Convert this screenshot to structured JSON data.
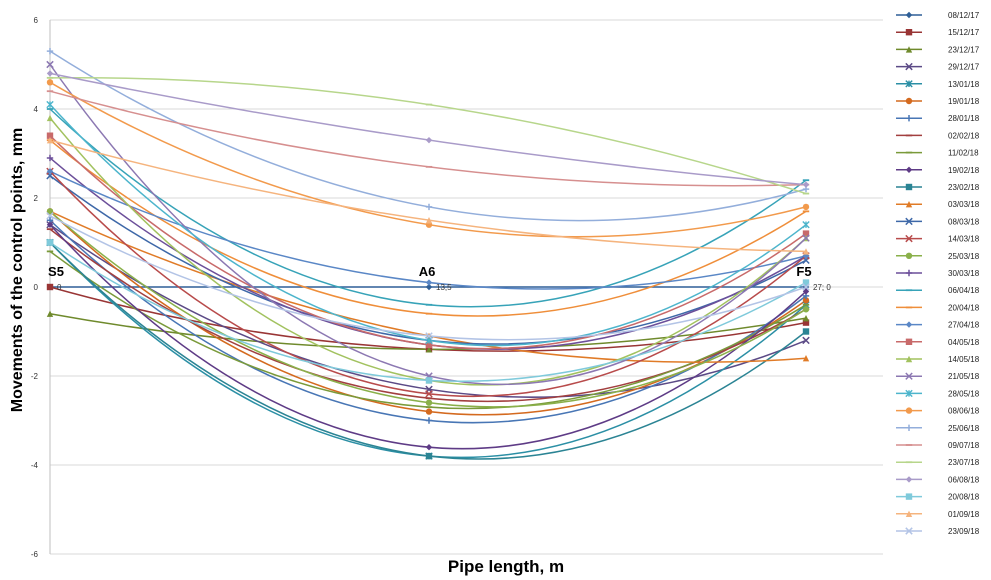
{
  "chart_data": {
    "type": "line",
    "title": "",
    "xlabel": "Pipe length, m",
    "ylabel": "Movements of the control points, mm",
    "x": [
      0,
      13.5,
      27
    ],
    "ylim": [
      -6,
      6
    ],
    "yticks": [
      6,
      4,
      2,
      0,
      -2,
      -4,
      -6
    ],
    "grid": true,
    "legend_position": "right",
    "point_labels": [
      {
        "label": "S5",
        "x": 0,
        "value_text": "0"
      },
      {
        "label": "A6",
        "x": 13.5,
        "value_text": "13,5"
      },
      {
        "label": "F5",
        "x": 27,
        "value_text": "27; 0"
      }
    ],
    "series": [
      {
        "name": "08/12/17",
        "color": "#2f5f97",
        "marker": "diamond",
        "values": [
          0,
          0,
          0
        ]
      },
      {
        "name": "15/12/17",
        "color": "#993535",
        "marker": "square",
        "values": [
          0,
          -1.4,
          -0.8
        ]
      },
      {
        "name": "23/12/17",
        "color": "#6f8a2c",
        "marker": "triangle",
        "values": [
          -0.6,
          -1.4,
          -0.7
        ]
      },
      {
        "name": "29/12/17",
        "color": "#5b4a86",
        "marker": "x",
        "values": [
          1.4,
          -2.3,
          -1.2
        ]
      },
      {
        "name": "13/01/18",
        "color": "#2b8fa5",
        "marker": "star",
        "values": [
          1.0,
          -3.8,
          -0.4
        ]
      },
      {
        "name": "19/01/18",
        "color": "#d46a1f",
        "marker": "circle",
        "values": [
          1.7,
          -2.8,
          -0.3
        ]
      },
      {
        "name": "28/01/18",
        "color": "#4876b5",
        "marker": "plus",
        "values": [
          1.5,
          -3.0,
          -0.2
        ]
      },
      {
        "name": "02/02/18",
        "color": "#a23f3f",
        "marker": "dash",
        "values": [
          1.3,
          -2.5,
          -0.5
        ]
      },
      {
        "name": "11/02/18",
        "color": "#7a9a3a",
        "marker": "dash",
        "values": [
          0.8,
          -2.7,
          -0.4
        ]
      },
      {
        "name": "19/02/18",
        "color": "#5e3b86",
        "marker": "diamond",
        "values": [
          1.4,
          -3.6,
          -0.1
        ]
      },
      {
        "name": "23/02/18",
        "color": "#2b8494",
        "marker": "square",
        "values": [
          1.0,
          -3.8,
          -1.0
        ]
      },
      {
        "name": "03/03/18",
        "color": "#e07b27",
        "marker": "triangle",
        "values": [
          1.7,
          -1.1,
          -1.6
        ]
      },
      {
        "name": "08/03/18",
        "color": "#3e68a8",
        "marker": "x",
        "values": [
          2.5,
          -1.2,
          0.6
        ]
      },
      {
        "name": "14/03/18",
        "color": "#b84b4b",
        "marker": "x",
        "values": [
          2.6,
          -2.4,
          0.7
        ]
      },
      {
        "name": "25/03/18",
        "color": "#8ab04a",
        "marker": "circle",
        "values": [
          1.7,
          -2.6,
          -0.5
        ]
      },
      {
        "name": "30/03/18",
        "color": "#6c4f9a",
        "marker": "plus",
        "values": [
          2.9,
          -1.3,
          0.7
        ]
      },
      {
        "name": "06/04/18",
        "color": "#37a3b8",
        "marker": "dash",
        "values": [
          4.0,
          -0.4,
          2.4
        ]
      },
      {
        "name": "20/04/18",
        "color": "#ef8e3a",
        "marker": "dash",
        "values": [
          3.3,
          -0.6,
          1.7
        ]
      },
      {
        "name": "27/04/18",
        "color": "#5a87c6",
        "marker": "diamond",
        "values": [
          2.6,
          0.1,
          0.7
        ]
      },
      {
        "name": "04/05/18",
        "color": "#c86a6a",
        "marker": "square",
        "values": [
          3.4,
          -1.3,
          1.2
        ]
      },
      {
        "name": "14/05/18",
        "color": "#a2c25f",
        "marker": "triangle",
        "values": [
          3.8,
          -2.1,
          1.1
        ]
      },
      {
        "name": "21/05/18",
        "color": "#8c78b2",
        "marker": "x",
        "values": [
          5.0,
          -2.0,
          1.1
        ]
      },
      {
        "name": "28/05/18",
        "color": "#4db5cc",
        "marker": "star",
        "values": [
          4.1,
          -1.2,
          1.4
        ]
      },
      {
        "name": "08/06/18",
        "color": "#f29a4c",
        "marker": "circle",
        "values": [
          4.6,
          1.4,
          1.8
        ]
      },
      {
        "name": "25/06/18",
        "color": "#93aedb",
        "marker": "plus",
        "values": [
          5.3,
          1.8,
          2.2
        ]
      },
      {
        "name": "09/07/18",
        "color": "#d68f8f",
        "marker": "dash",
        "values": [
          4.4,
          2.7,
          2.3
        ]
      },
      {
        "name": "23/07/18",
        "color": "#b7d68b",
        "marker": "dash",
        "values": [
          4.7,
          4.1,
          2.1
        ]
      },
      {
        "name": "06/08/18",
        "color": "#a99bc9",
        "marker": "diamond",
        "values": [
          4.8,
          3.3,
          2.3
        ]
      },
      {
        "name": "20/08/18",
        "color": "#7fcadb",
        "marker": "square",
        "values": [
          1.0,
          -2.1,
          0.1
        ]
      },
      {
        "name": "01/09/18",
        "color": "#f5b47e",
        "marker": "triangle",
        "values": [
          3.3,
          1.5,
          0.8
        ]
      },
      {
        "name": "23/09/18",
        "color": "#b3c4e6",
        "marker": "x",
        "values": [
          1.6,
          -1.1,
          0.0
        ]
      }
    ]
  }
}
